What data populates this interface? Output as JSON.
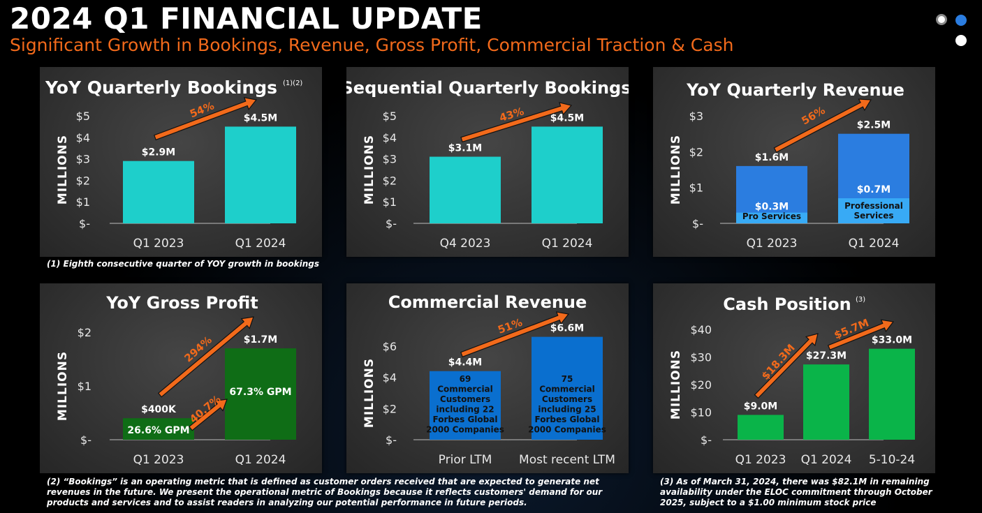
{
  "header": {
    "title": "2024 Q1 FINANCIAL UPDATE",
    "subtitle": "Significant Growth in Bookings, Revenue, Gross Profit, Commercial Traction & Cash"
  },
  "colors": {
    "accent": "#f26a1b",
    "teal": "#1ecfcb",
    "blue": "#2b7de0",
    "light_blue": "#38aaf5",
    "dark_green": "#0f6d16",
    "green": "#0ab449",
    "commercial_blue": "#0a6fcf"
  },
  "charts": {
    "yoy_bookings": {
      "title": "YoY Quarterly Bookings",
      "sup": "(1)(2)",
      "ylabel": "MILLIONS",
      "growth_label": "54%"
    },
    "seq_bookings": {
      "title": "Sequential Quarterly Bookings",
      "ylabel": "MILLIONS",
      "growth_label": "43%"
    },
    "yoy_revenue": {
      "title": "YoY Quarterly Revenue",
      "ylabel": "MILLIONS",
      "growth_label": "56%"
    },
    "gross_profit": {
      "title": "YoY Gross Profit",
      "ylabel": "MILLIONS",
      "growth_label": "294%",
      "growth_label_2": "40.7%"
    },
    "commercial": {
      "title": "Commercial Revenue",
      "ylabel": "MILLIONS",
      "growth_label": "51%"
    },
    "cash": {
      "title": "Cash Position",
      "sup": "(3)",
      "ylabel": "MILLIONS",
      "growth_label": "$18.3M",
      "growth_label_2": "$5.7M"
    }
  },
  "chart_data": [
    {
      "type": "bar",
      "title": "YoY Quarterly Bookings",
      "ylabel": "MILLIONS",
      "ylim": [
        0,
        5
      ],
      "yticks": [
        "$-",
        "$1",
        "$2",
        "$3",
        "$4",
        "$5"
      ],
      "categories": [
        "Q1 2023",
        "Q1 2024"
      ],
      "values": [
        2.9,
        4.5
      ],
      "data_labels": [
        "$2.9M",
        "$4.5M"
      ]
    },
    {
      "type": "bar",
      "title": "Sequential Quarterly Bookings",
      "ylabel": "MILLIONS",
      "ylim": [
        0,
        5
      ],
      "yticks": [
        "$-",
        "$1",
        "$2",
        "$3",
        "$4",
        "$5"
      ],
      "categories": [
        "Q4 2023",
        "Q1 2024"
      ],
      "values": [
        3.1,
        4.5
      ],
      "data_labels": [
        "$3.1M",
        "$4.5M"
      ]
    },
    {
      "type": "bar",
      "title": "YoY Quarterly Revenue",
      "ylabel": "MILLIONS",
      "ylim": [
        0,
        3
      ],
      "yticks": [
        "$-",
        "$1",
        "$2",
        "$3"
      ],
      "categories": [
        "Q1 2023",
        "Q1 2024"
      ],
      "values": [
        1.6,
        2.5
      ],
      "data_labels": [
        "$1.6M",
        "$2.5M"
      ],
      "stack": [
        {
          "value": 0.3,
          "label": "$0.3M",
          "text": "Pro Services"
        },
        {
          "value": 0.7,
          "label": "$0.7M",
          "text": "Professional Services"
        }
      ]
    },
    {
      "type": "bar",
      "title": "YoY Gross Profit",
      "ylabel": "MILLIONS",
      "ylim": [
        0,
        2
      ],
      "yticks": [
        "$-",
        "$1",
        "$2"
      ],
      "categories": [
        "Q1 2023",
        "Q1 2024"
      ],
      "values": [
        0.4,
        1.7
      ],
      "data_labels": [
        "$400K",
        "$1.7M"
      ],
      "inner_labels": [
        "26.6% GPM",
        "67.3% GPM"
      ]
    },
    {
      "type": "bar",
      "title": "Commercial Revenue",
      "ylabel": "MILLIONS",
      "ylim": [
        0,
        6
      ],
      "yticks": [
        "$-",
        "$2",
        "$4",
        "$6"
      ],
      "categories": [
        "Prior LTM",
        "Most recent LTM"
      ],
      "values": [
        4.4,
        6.6
      ],
      "data_labels": [
        "$4.4M",
        "$6.6M"
      ],
      "inner_text": [
        [
          "69",
          "Commercial",
          "Customers",
          "including 22",
          "Forbes Global",
          "2000 Companies"
        ],
        [
          "75",
          "Commercial",
          "Customers",
          "including 25",
          "Forbes Global",
          "2000 Companies"
        ]
      ]
    },
    {
      "type": "bar",
      "title": "Cash Position",
      "ylabel": "MILLIONS",
      "ylim": [
        0,
        40
      ],
      "yticks": [
        "$-",
        "$10",
        "$20",
        "$30",
        "$40"
      ],
      "categories": [
        "Q1 2023",
        "Q1 2024",
        "5-10-24"
      ],
      "values": [
        9.0,
        27.3,
        33.0
      ],
      "data_labels": [
        "$9.0M",
        "$27.3M",
        "$33.0M"
      ]
    }
  ],
  "notes": {
    "note1": "(1)   Eighth consecutive quarter of YOY growth in bookings",
    "note2": "(2) “Bookings” is an operating metric that is defined as customer orders received that are expected to generate net revenues in the future. We present the operational metric of Bookings because it reflects customers' demand for our products and services and to assist readers in analyzing our potential performance in future periods.",
    "note3": "(3) As of March 31, 2024, there was $82.1M in remaining availability under the ELOC commitment through October 2025, subject to a $1.00 minimum stock price"
  }
}
